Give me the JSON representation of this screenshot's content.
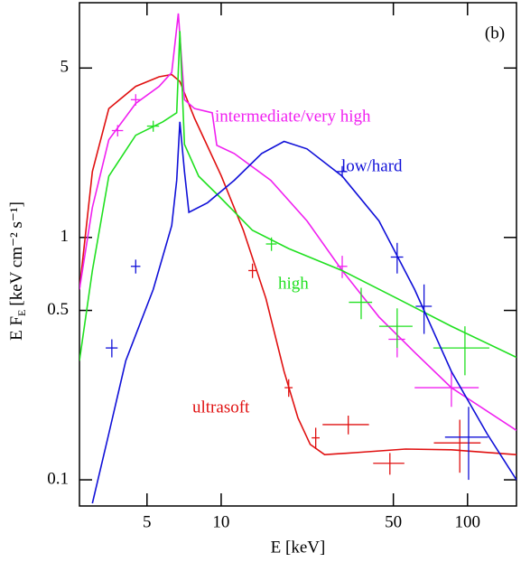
{
  "chart_data": {
    "type": "line",
    "panel_label": "(b)",
    "x_label": "E [keV]",
    "y_label_main": "E F",
    "y_label_sub": "E",
    "y_label_units": "[keV cm⁻² s⁻¹]",
    "log_x": true,
    "log_y": true,
    "xlim": [
      2.66,
      158
    ],
    "ylim": [
      0.078,
      9.3
    ],
    "xticks": [
      5,
      10,
      50,
      100
    ],
    "yticks": [
      0.1,
      0.5,
      1,
      5
    ],
    "series": [
      {
        "name": "ultrasoft",
        "color": "#e01010",
        "x": [
          2.66,
          3.0,
          3.5,
          4.5,
          5.6,
          6.3,
          6.8,
          7.8,
          10,
          12.3,
          15.2,
          18,
          20.5,
          23,
          26.3,
          37,
          56,
          86,
          158
        ],
        "values": [
          0.61,
          1.87,
          3.4,
          4.2,
          4.6,
          4.7,
          4.4,
          3.1,
          1.8,
          1.07,
          0.56,
          0.28,
          0.18,
          0.14,
          0.127,
          0.13,
          0.134,
          0.133,
          0.127
        ],
        "points": {
          "x": [
            13.4,
            18.8,
            24.2,
            32.8,
            48.4,
            93
          ],
          "y": [
            0.73,
            0.24,
            0.149,
            0.169,
            0.117,
            0.142
          ],
          "xerr": [
            0.5,
            0.7,
            0.9,
            7,
            7,
            20
          ],
          "yerr": [
            0.05,
            0.02,
            0.015,
            0.015,
            0.012,
            0.035
          ]
        }
      },
      {
        "name": "intermediate/very high",
        "color": "#f020f0",
        "x": [
          2.66,
          3.0,
          3.5,
          4.5,
          5.6,
          6.3,
          6.7,
          7.1,
          7.8,
          9.2,
          9.6,
          11.3,
          15.9,
          22.3,
          31,
          43.7,
          61,
          86,
          158
        ],
        "values": [
          0.61,
          1.33,
          2.53,
          3.57,
          4.2,
          4.8,
          8.4,
          3.7,
          3.4,
          3.27,
          2.4,
          2.22,
          1.72,
          1.17,
          0.73,
          0.47,
          0.336,
          0.24,
          0.16
        ],
        "points": {
          "x": [
            3.8,
            4.5,
            31,
            51.8,
            86
          ],
          "y": [
            2.76,
            3.7,
            0.76,
            0.38,
            0.24
          ],
          "xerr": [
            0.2,
            0.2,
            1.5,
            4,
            25
          ],
          "yerr": [
            0.15,
            0.2,
            0.08,
            0.06,
            0.04
          ]
        }
      },
      {
        "name": "high",
        "color": "#20e020",
        "x": [
          2.66,
          3.0,
          3.5,
          4.5,
          5.8,
          6.6,
          6.8,
          7.1,
          8.1,
          10,
          13.4,
          18.8,
          31,
          51.8,
          86,
          158
        ],
        "values": [
          0.31,
          0.73,
          1.79,
          2.64,
          3.0,
          3.27,
          7.1,
          2.42,
          1.79,
          1.45,
          1.07,
          0.9,
          0.73,
          0.56,
          0.43,
          0.32
        ],
        "points": {
          "x": [
            5.3,
            16,
            37,
            51.8,
            97.6
          ],
          "y": [
            2.88,
            0.94,
            0.54,
            0.43,
            0.35
          ],
          "xerr": [
            0.3,
            0.8,
            4,
            8,
            25
          ],
          "yerr": [
            0.15,
            0.06,
            0.08,
            0.08,
            0.08
          ]
        }
      },
      {
        "name": "low/hard",
        "color": "#1010d8",
        "x": [
          3.0,
          3.5,
          4.1,
          5.3,
          6.3,
          6.6,
          6.8,
          7.1,
          7.4,
          8.8,
          11.3,
          14.6,
          18,
          22.3,
          31,
          43.7,
          61,
          86,
          120,
          158
        ],
        "values": [
          0.08,
          0.155,
          0.31,
          0.61,
          1.12,
          1.72,
          3.0,
          1.87,
          1.27,
          1.39,
          1.72,
          2.22,
          2.49,
          2.32,
          1.79,
          1.17,
          0.61,
          0.28,
          0.155,
          0.1
        ],
        "points": {
          "x": [
            3.6,
            4.5,
            31,
            51.8,
            66.6,
            101
          ],
          "y": [
            0.35,
            0.76,
            1.87,
            0.83,
            0.52,
            0.15
          ],
          "xerr": [
            0.2,
            0.2,
            1.5,
            3,
            5,
            20
          ],
          "yerr": [
            0.03,
            0.05,
            0.1,
            0.12,
            0.12,
            0.05
          ]
        }
      }
    ]
  }
}
